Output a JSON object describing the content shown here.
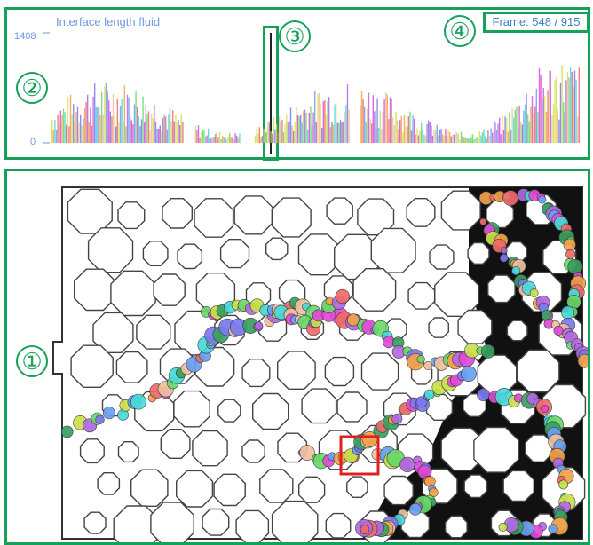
{
  "chart": {
    "title": "Interface length fluid",
    "ytick_max": "1408",
    "ytick_min": "0",
    "frame_label": "Frame: 548 / 915"
  },
  "callouts": {
    "viewer": "①",
    "chart": "②",
    "playhead": "③",
    "frame_counter": "④"
  },
  "chart_data": {
    "type": "bar",
    "title": "Interface length fluid",
    "ylim": [
      0,
      1408
    ],
    "xlabel": "",
    "ylabel": "",
    "current_frame": 548,
    "total_frames": 915
  },
  "colors": {
    "accent": "#17a05a",
    "selection": "#e02020",
    "axis_text": "#6b9ae6"
  }
}
